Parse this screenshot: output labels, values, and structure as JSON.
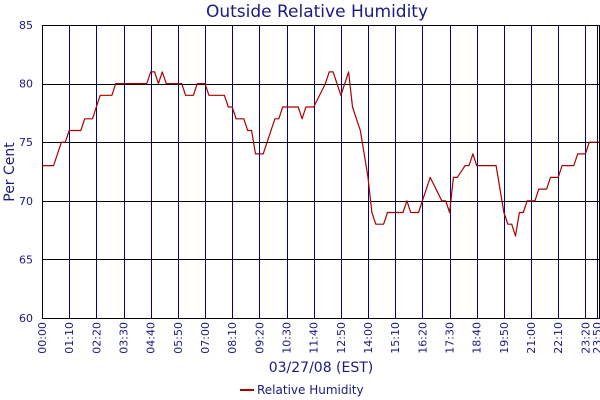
{
  "chart_data": {
    "type": "line",
    "title": "Outside Relative Humidity",
    "xlabel": "03/27/08 (EST)",
    "ylabel": "Per Cent",
    "ylim": [
      60,
      85
    ],
    "y_ticks": [
      "60",
      "65",
      "70",
      "75",
      "80",
      "85"
    ],
    "x_ticks": [
      "00:00",
      "01:10",
      "02:20",
      "03:30",
      "04:40",
      "05:50",
      "07:00",
      "08:10",
      "09:20",
      "10:30",
      "11:40",
      "12:50",
      "14:00",
      "15:10",
      "16:20",
      "17:30",
      "18:40",
      "19:50",
      "21:00",
      "22:10",
      "23:20",
      "23:50"
    ],
    "grid": true,
    "legend_position": "bottom-center",
    "series": [
      {
        "name": "Relative Humidity",
        "color": "#aa0000",
        "points": [
          [
            "00:00",
            73
          ],
          [
            "00:30",
            73
          ],
          [
            "00:50",
            75
          ],
          [
            "01:00",
            75
          ],
          [
            "01:10",
            76
          ],
          [
            "01:40",
            76
          ],
          [
            "01:50",
            77
          ],
          [
            "02:10",
            77
          ],
          [
            "02:20",
            78
          ],
          [
            "02:30",
            79
          ],
          [
            "03:00",
            79
          ],
          [
            "03:10",
            80
          ],
          [
            "04:30",
            80
          ],
          [
            "04:40",
            81
          ],
          [
            "04:50",
            81
          ],
          [
            "05:00",
            80
          ],
          [
            "05:10",
            81
          ],
          [
            "05:20",
            80
          ],
          [
            "06:00",
            80
          ],
          [
            "06:10",
            79
          ],
          [
            "06:30",
            79
          ],
          [
            "06:40",
            80
          ],
          [
            "06:50",
            80
          ],
          [
            "07:00",
            80
          ],
          [
            "07:10",
            79
          ],
          [
            "07:50",
            79
          ],
          [
            "08:00",
            78
          ],
          [
            "08:10",
            78
          ],
          [
            "08:20",
            77
          ],
          [
            "08:40",
            77
          ],
          [
            "08:50",
            76
          ],
          [
            "09:00",
            76
          ],
          [
            "09:10",
            74
          ],
          [
            "09:30",
            74
          ],
          [
            "10:00",
            77
          ],
          [
            "10:10",
            77
          ],
          [
            "10:20",
            78
          ],
          [
            "11:00",
            78
          ],
          [
            "11:10",
            77
          ],
          [
            "11:20",
            78
          ],
          [
            "11:40",
            78
          ],
          [
            "12:10",
            80
          ],
          [
            "12:20",
            81
          ],
          [
            "12:30",
            81
          ],
          [
            "12:50",
            79
          ],
          [
            "13:10",
            81
          ],
          [
            "13:20",
            78
          ],
          [
            "13:40",
            76
          ],
          [
            "13:50",
            74
          ],
          [
            "14:00",
            72
          ],
          [
            "14:10",
            69
          ],
          [
            "14:20",
            68
          ],
          [
            "14:40",
            68
          ],
          [
            "14:50",
            69
          ],
          [
            "15:30",
            69
          ],
          [
            "15:40",
            70
          ],
          [
            "15:50",
            69
          ],
          [
            "16:10",
            69
          ],
          [
            "16:40",
            72
          ],
          [
            "17:10",
            70
          ],
          [
            "17:20",
            70
          ],
          [
            "17:30",
            69
          ],
          [
            "17:40",
            72
          ],
          [
            "17:50",
            72
          ],
          [
            "18:10",
            73
          ],
          [
            "18:20",
            73
          ],
          [
            "18:30",
            74
          ],
          [
            "18:40",
            73
          ],
          [
            "19:30",
            73
          ],
          [
            "19:40",
            71
          ],
          [
            "19:50",
            69
          ],
          [
            "20:00",
            68
          ],
          [
            "20:10",
            68
          ],
          [
            "20:20",
            67
          ],
          [
            "20:30",
            69
          ],
          [
            "20:40",
            69
          ],
          [
            "20:50",
            70
          ],
          [
            "21:10",
            70
          ],
          [
            "21:20",
            71
          ],
          [
            "21:40",
            71
          ],
          [
            "21:50",
            72
          ],
          [
            "22:10",
            72
          ],
          [
            "22:20",
            73
          ],
          [
            "22:50",
            73
          ],
          [
            "23:00",
            74
          ],
          [
            "23:20",
            74
          ],
          [
            "23:30",
            75
          ],
          [
            "23:55",
            75
          ]
        ]
      }
    ]
  }
}
